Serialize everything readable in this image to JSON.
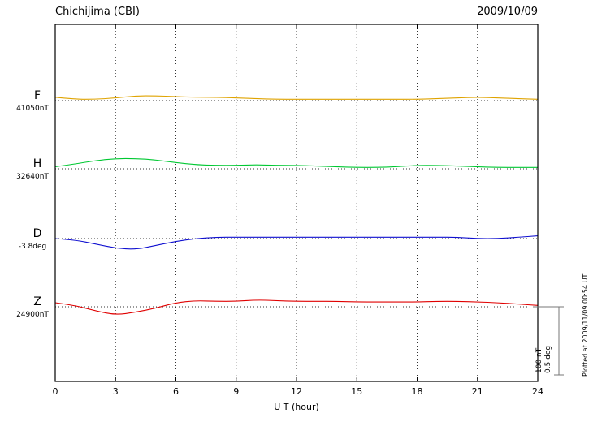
{
  "header": {
    "title": "Chichijima (CBI)",
    "date": "2009/10/09"
  },
  "axis": {
    "xlabel": "U T (hour)"
  },
  "scale_bar": {
    "nt_label": "100 nT",
    "deg_label": "0.5 deg"
  },
  "footer": {
    "plotted_at": "Plotted at 2009/11/09 00:54 UT"
  },
  "chart_data": {
    "type": "line",
    "title": "Chichijima (CBI)",
    "date": "2009/10/09",
    "xlabel": "U T (hour)",
    "xlim": [
      0,
      24
    ],
    "x_ticks": [
      0,
      3,
      6,
      9,
      12,
      15,
      18,
      21,
      24
    ],
    "sample_interval_hours": 1,
    "grid_style": "dotted",
    "legend_position": "left-of-plot",
    "scale_reference": {
      "nT_per_bar": 100,
      "deg_per_bar": 0.5
    },
    "series": [
      {
        "name": "F",
        "unit": "nT",
        "color": "#dfa300",
        "baseline_label": "41050nT",
        "baseline_value": 41050,
        "offsets_from_baseline": [
          5,
          2,
          2,
          4,
          7,
          7,
          6,
          5,
          5,
          4,
          3,
          2,
          2,
          2,
          2,
          2,
          2,
          2,
          2,
          3,
          4,
          5,
          4,
          3,
          2
        ]
      },
      {
        "name": "H",
        "unit": "nT",
        "color": "#00c832",
        "baseline_label": "32640nT",
        "baseline_value": 32640,
        "offsets_from_baseline": [
          3,
          7,
          12,
          15,
          15,
          13,
          9,
          6,
          5,
          5,
          6,
          5,
          5,
          4,
          3,
          2,
          2,
          3,
          5,
          5,
          4,
          3,
          2,
          2,
          2
        ]
      },
      {
        "name": "D",
        "unit": "deg",
        "color": "#1010d0",
        "baseline_label": "-3.8deg",
        "baseline_value": -3.8,
        "offsets_from_baseline": [
          0,
          -0.01,
          -0.04,
          -0.07,
          -0.08,
          -0.05,
          -0.02,
          0,
          0.01,
          0.01,
          0.01,
          0.01,
          0.01,
          0.01,
          0.01,
          0.01,
          0.01,
          0.01,
          0.01,
          0.01,
          0.01,
          0,
          0,
          0.01,
          0.02
        ]
      },
      {
        "name": "Z",
        "unit": "nT",
        "color": "#e00000",
        "baseline_label": "24900nT",
        "baseline_value": 24900,
        "offsets_from_baseline": [
          6,
          2,
          -6,
          -12,
          -8,
          -2,
          6,
          9,
          8,
          8,
          10,
          9,
          8,
          8,
          8,
          7,
          7,
          7,
          7,
          8,
          8,
          7,
          6,
          4,
          2
        ]
      }
    ]
  }
}
